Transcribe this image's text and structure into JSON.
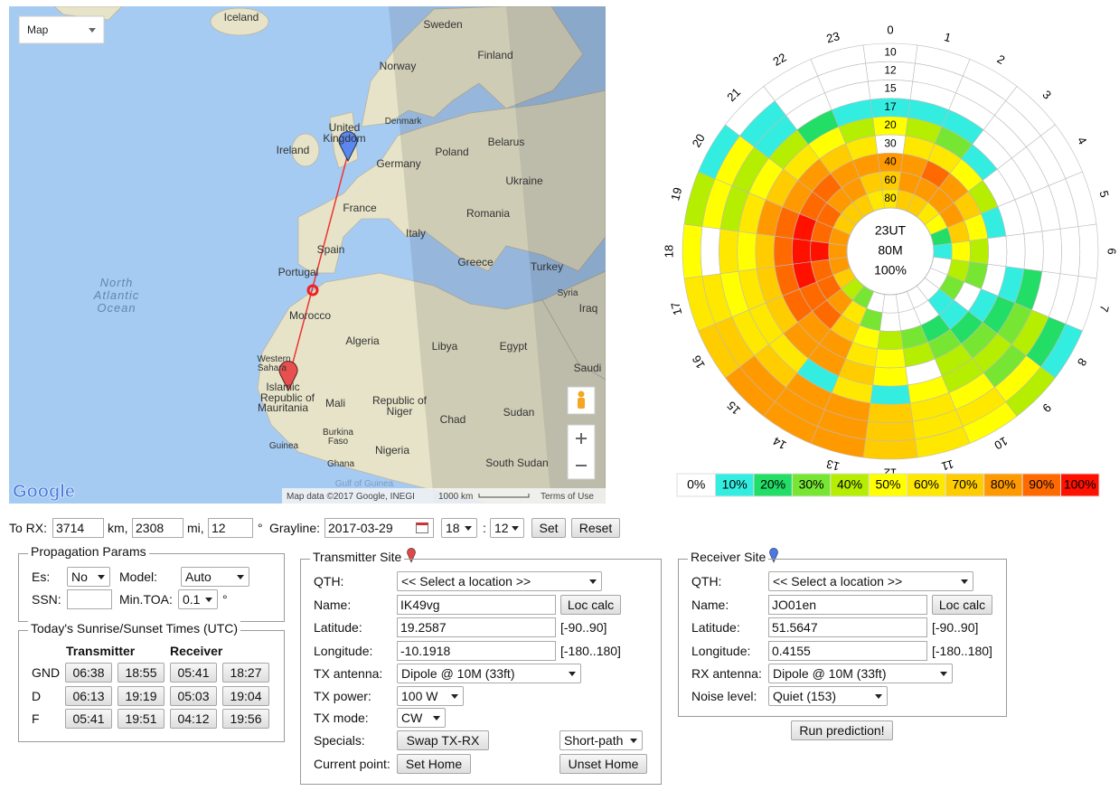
{
  "map": {
    "type": "Map",
    "labels": [
      "Iceland",
      "Sweden",
      "Finland",
      "Norway",
      "Denmark",
      "United",
      "Kingdom",
      "Ireland",
      "Belarus",
      "Poland",
      "Germany",
      "Ukraine",
      "France",
      "Romania",
      "Italy",
      "Spain",
      "Portugal",
      "Greece",
      "Turkey",
      "Syria",
      "Iraq",
      "Morocco",
      "Algeria",
      "Libya",
      "Egypt",
      "Saudi",
      "Western",
      "Sahara",
      "Islamic",
      "Republic of",
      "Mauritania",
      "Mali",
      "Republic of",
      "Niger",
      "Chad",
      "Sudan",
      "Burkina",
      "Faso",
      "Guinea",
      "Nigeria",
      "South Sudan",
      "Ghana",
      "Gulf of Guinea",
      "North",
      "Atlantic",
      "Ocean"
    ],
    "attribution": "Map data ©2017 Google, INEGI",
    "scale": "1000 km",
    "terms": "Terms of Use",
    "logo": "Google"
  },
  "chart_data": {
    "type": "polar-heatmap",
    "hours": [
      0,
      1,
      2,
      3,
      4,
      5,
      6,
      7,
      8,
      9,
      10,
      11,
      12,
      13,
      14,
      15,
      16,
      17,
      18,
      19,
      20,
      21,
      22,
      23
    ],
    "rings": [
      10,
      12,
      15,
      17,
      20,
      30,
      40,
      60,
      80
    ],
    "values": [
      [
        0,
        0,
        0,
        10,
        50,
        0,
        80,
        70,
        60
      ],
      [
        0,
        0,
        0,
        10,
        40,
        60,
        80,
        80,
        70
      ],
      [
        0,
        0,
        0,
        10,
        30,
        60,
        90,
        80,
        70
      ],
      [
        0,
        0,
        0,
        0,
        10,
        50,
        80,
        80,
        60
      ],
      [
        0,
        0,
        0,
        0,
        0,
        40,
        70,
        80,
        50
      ],
      [
        0,
        0,
        0,
        0,
        0,
        10,
        50,
        70,
        20
      ],
      [
        0,
        0,
        0,
        0,
        0,
        0,
        40,
        50,
        10
      ],
      [
        0,
        0,
        0,
        20,
        10,
        0,
        30,
        40,
        0
      ],
      [
        10,
        20,
        40,
        30,
        20,
        10,
        0,
        30,
        0
      ],
      [
        40,
        50,
        30,
        40,
        30,
        20,
        10,
        10,
        0
      ],
      [
        50,
        60,
        50,
        40,
        40,
        30,
        20,
        0,
        0
      ],
      [
        60,
        60,
        60,
        50,
        0,
        40,
        30,
        0,
        0
      ],
      [
        70,
        70,
        70,
        10,
        50,
        50,
        40,
        0,
        0
      ],
      [
        80,
        80,
        80,
        60,
        70,
        60,
        50,
        30,
        0
      ],
      [
        80,
        80,
        80,
        10,
        80,
        80,
        70,
        60,
        30
      ],
      [
        80,
        80,
        70,
        60,
        80,
        80,
        90,
        80,
        40
      ],
      [
        70,
        70,
        60,
        60,
        70,
        90,
        90,
        90,
        70
      ],
      [
        60,
        60,
        50,
        60,
        70,
        90,
        100,
        90,
        80
      ],
      [
        50,
        0,
        60,
        50,
        70,
        90,
        100,
        100,
        80
      ],
      [
        40,
        50,
        40,
        60,
        80,
        90,
        100,
        90,
        80
      ],
      [
        10,
        50,
        40,
        50,
        70,
        80,
        90,
        90,
        70
      ],
      [
        0,
        10,
        10,
        40,
        60,
        80,
        90,
        80,
        70
      ],
      [
        0,
        0,
        0,
        20,
        50,
        70,
        80,
        80,
        70
      ],
      [
        0,
        0,
        0,
        10,
        40,
        60,
        80,
        70,
        60
      ]
    ],
    "center": [
      "23UT",
      "80M",
      "100%"
    ],
    "legend": [
      {
        "value": 0,
        "label": "0%",
        "color": "#ffffff"
      },
      {
        "value": 10,
        "label": "10%",
        "color": "#33eee0"
      },
      {
        "value": 20,
        "label": "20%",
        "color": "#22dd66"
      },
      {
        "value": 30,
        "label": "30%",
        "color": "#77e633"
      },
      {
        "value": 40,
        "label": "40%",
        "color": "#b5ee00"
      },
      {
        "value": 50,
        "label": "50%",
        "color": "#ffff00"
      },
      {
        "value": 60,
        "label": "60%",
        "color": "#ffe800"
      },
      {
        "value": 70,
        "label": "70%",
        "color": "#ffcc00"
      },
      {
        "value": 80,
        "label": "80%",
        "color": "#ff9900"
      },
      {
        "value": 90,
        "label": "90%",
        "color": "#ff6a00"
      },
      {
        "value": 100,
        "label": "100%",
        "color": "#ff1100"
      }
    ]
  },
  "toolbar": {
    "to_rx": "To RX:",
    "km": "3714",
    "km_unit": "km,",
    "mi": "2308",
    "mi_unit": "mi,",
    "bearing": "12",
    "deg_unit": "°",
    "grayline": "Grayline:",
    "date": "2017-03-29",
    "hour": "18",
    "colon": ":",
    "minute": "12",
    "set": "Set",
    "reset": "Reset"
  },
  "propagation": {
    "legend": "Propagation Params",
    "es_label": "Es:",
    "es": "No",
    "model_label": "Model:",
    "model": "Auto",
    "ssn_label": "SSN:",
    "min_toa_label": "Min.TOA:",
    "min_toa": "0.1",
    "deg": "°"
  },
  "sun": {
    "legend": "Today's Sunrise/Sunset Times (UTC)",
    "headers": [
      "Transmitter",
      "Receiver"
    ],
    "rows": [
      {
        "name": "GND",
        "times": [
          "06:38",
          "18:55",
          "05:41",
          "18:27"
        ]
      },
      {
        "name": "D",
        "times": [
          "06:13",
          "19:19",
          "05:03",
          "19:04"
        ]
      },
      {
        "name": "F",
        "times": [
          "05:41",
          "19:51",
          "04:12",
          "19:56"
        ]
      }
    ]
  },
  "transmitter": {
    "legend": "Transmitter Site",
    "qth_label": "QTH:",
    "qth": "<< Select a location >>",
    "name_label": "Name:",
    "name": "IK49vg",
    "loc_calc": "Loc calc",
    "lat_label": "Latitude:",
    "lat": "19.2587",
    "lat_range": "[-90..90]",
    "lon_label": "Longitude:",
    "lon": "-10.1918",
    "lon_range": "[-180..180]",
    "antenna_label": "TX antenna:",
    "antenna": "Dipole @ 10M (33ft)",
    "power_label": "TX power:",
    "power": "100 W",
    "mode_label": "TX mode:",
    "mode": "CW",
    "specials_label": "Specials:",
    "swap": "Swap TX-RX",
    "path": "Short-path",
    "current_label": "Current point:",
    "set_home": "Set Home",
    "unset_home": "Unset Home"
  },
  "receiver": {
    "legend": "Receiver Site",
    "qth_label": "QTH:",
    "qth": "<< Select a location >>",
    "name_label": "Name:",
    "name": "JO01en",
    "loc_calc": "Loc calc",
    "lat_label": "Latitude:",
    "lat": "51.5647",
    "lat_range": "[-90..90]",
    "lon_label": "Longitude:",
    "lon": "0.4155",
    "lon_range": "[-180..180]",
    "antenna_label": "RX antenna:",
    "antenna": "Dipole @ 10M (33ft)",
    "noise_label": "Noise level:",
    "noise": "Quiet (153)"
  },
  "run": "Run prediction!"
}
